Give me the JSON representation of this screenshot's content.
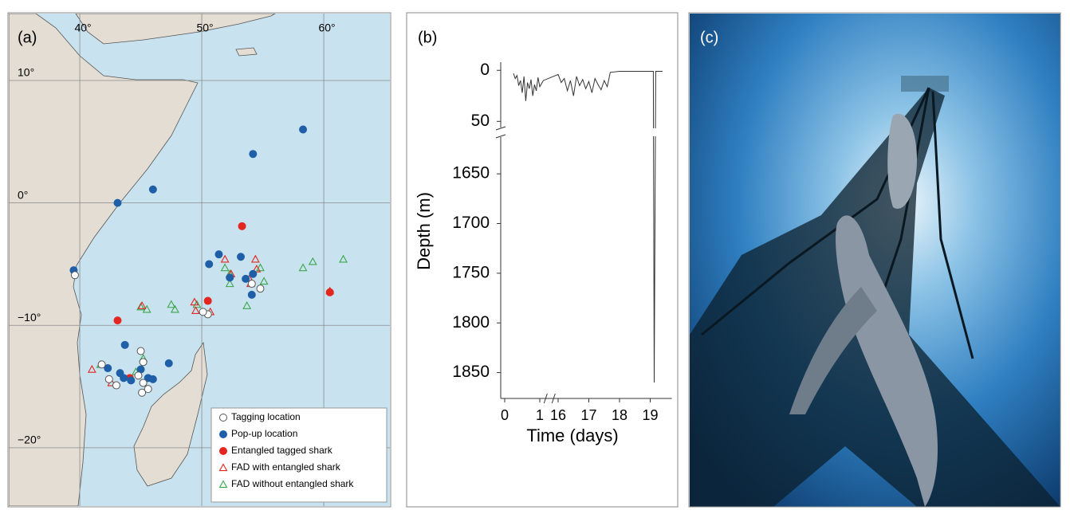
{
  "chart_data": [
    {
      "type": "scatter",
      "label": "(a)",
      "xlim": [
        34.18,
        65.42
      ],
      "ylim": [
        -24.76,
        15.47
      ],
      "xticks": [
        {
          "value": 40,
          "label": "40°"
        },
        {
          "value": 50,
          "label": "50°"
        },
        {
          "value": 60,
          "label": "60°"
        }
      ],
      "yticks": [
        {
          "value": 10,
          "label": "10°"
        },
        {
          "value": 0,
          "label": "0°"
        },
        {
          "value": -10,
          "label": "−10°"
        },
        {
          "value": -20,
          "label": "−20°"
        }
      ],
      "grid": true,
      "legend": "lower right",
      "series": [
        {
          "name": "Tagging location",
          "marker": "circle",
          "color": "#555555",
          "fill": "#ffffff",
          "x": [
            45.0,
            45.2,
            44.8,
            45.2,
            45.6,
            45.1,
            42.4,
            41.8,
            50.5,
            50.1,
            54.8,
            54.1,
            39.6,
            43.0
          ],
          "values": [
            -12.1,
            -13.0,
            -14.1,
            -14.7,
            -15.2,
            -15.5,
            -14.4,
            -13.2,
            -9.1,
            -8.9,
            -7.0,
            -6.6,
            -5.9,
            -14.9
          ]
        },
        {
          "name": "Pop-up location",
          "marker": "circle",
          "color": "#1f5fa8",
          "fill": "#1f5fa8",
          "x": [
            58.3,
            54.2,
            46.0,
            43.1,
            39.5,
            53.2,
            53.6,
            54.2,
            51.4,
            50.6,
            52.3,
            54.1,
            47.3,
            43.7,
            43.3,
            42.3,
            44.2,
            45.6,
            46.0,
            43.6,
            45.0
          ],
          "values": [
            6.0,
            4.0,
            1.1,
            0,
            -5.5,
            -4.4,
            -6.2,
            -5.8,
            -4.2,
            -5.0,
            -6.1,
            -7.5,
            -13.1,
            -11.6,
            -13.9,
            -13.5,
            -14.5,
            -14.3,
            -14.4,
            -14.3,
            -13.6
          ]
        },
        {
          "name": "Entangled tagged shark",
          "marker": "circle",
          "color": "#e3261f",
          "fill": "#e3261f",
          "x": [
            53.3,
            43.1,
            50.5,
            44.1,
            60.5
          ],
          "values": [
            -1.9,
            -9.6,
            -8.0,
            -14.3,
            -7.3
          ]
        },
        {
          "name": "FAD with entangled shark",
          "marker": "triangle",
          "color": "#e3261f",
          "fill": "none",
          "x": [
            51.9,
            54.4,
            54.5,
            53.9,
            49.4,
            49.5,
            50.7,
            45.1,
            41.0,
            42.6,
            54.0,
            52.4,
            60.5
          ],
          "values": [
            -4.6,
            -4.6,
            -5.4,
            -6.2,
            -8.1,
            -8.8,
            -8.9,
            -8.4,
            -13.6,
            -14.7,
            -6.6,
            -5.8,
            -7.2
          ]
        },
        {
          "name": "FAD without entangled shark",
          "marker": "triangle",
          "color": "#3aa64a",
          "fill": "none",
          "x": [
            61.6,
            59.1,
            58.3,
            51.9,
            52.3,
            54.8,
            55.1,
            53.7,
            47.5,
            47.8,
            45.5,
            45.0,
            49.6,
            45.2,
            44.6,
            41.7,
            52.3
          ],
          "values": [
            -4.6,
            -4.8,
            -5.3,
            -5.3,
            -5.8,
            -5.3,
            -6.4,
            -8.4,
            -8.3,
            -8.7,
            -8.7,
            -8.5,
            -8.3,
            -12.7,
            -13.8,
            -13.2,
            -6.6
          ]
        }
      ]
    },
    {
      "type": "line",
      "label": "(b)",
      "x_label": "Time (days)",
      "y_label": "Depth (m)",
      "xlim": [
        -0.1,
        19.6
      ],
      "xbreak": [
        1.3,
        15.7
      ],
      "xticks": [
        0,
        1,
        16,
        17,
        18,
        19
      ],
      "ylim": [
        56,
        -8
      ],
      "yticks": [
        0,
        50
      ],
      "y2lim": [
        1876,
        1613
      ],
      "y2ticks": [
        1650,
        1700,
        1750,
        1800,
        1850
      ],
      "series": [
        {
          "color": "#333333",
          "x": [
            0.25,
            0.3,
            0.35,
            0.4,
            0.45,
            0.5,
            0.55,
            0.6,
            0.65,
            0.7,
            0.75,
            0.8,
            0.85,
            0.9,
            0.95,
            1.0,
            1.1,
            16.0,
            16.1,
            16.2,
            16.3,
            16.4,
            16.5,
            16.6,
            16.7,
            16.8,
            16.9,
            17.0,
            17.1,
            17.2,
            17.3,
            17.4,
            17.5,
            17.6,
            17.7,
            18.0,
            18.5,
            19.0,
            19.1,
            19.13,
            19.18,
            19.4
          ],
          "values": [
            3,
            8,
            5,
            15,
            10,
            22,
            6,
            30,
            12,
            18,
            9,
            25,
            14,
            20,
            7,
            16,
            10,
            4,
            12,
            8,
            20,
            10,
            25,
            6,
            15,
            9,
            18,
            11,
            22,
            8,
            14,
            19,
            10,
            16,
            2,
            1,
            1,
            1,
            1,
            1860,
            1,
            1
          ]
        }
      ]
    }
  ],
  "photo": {
    "label": "(c)"
  }
}
